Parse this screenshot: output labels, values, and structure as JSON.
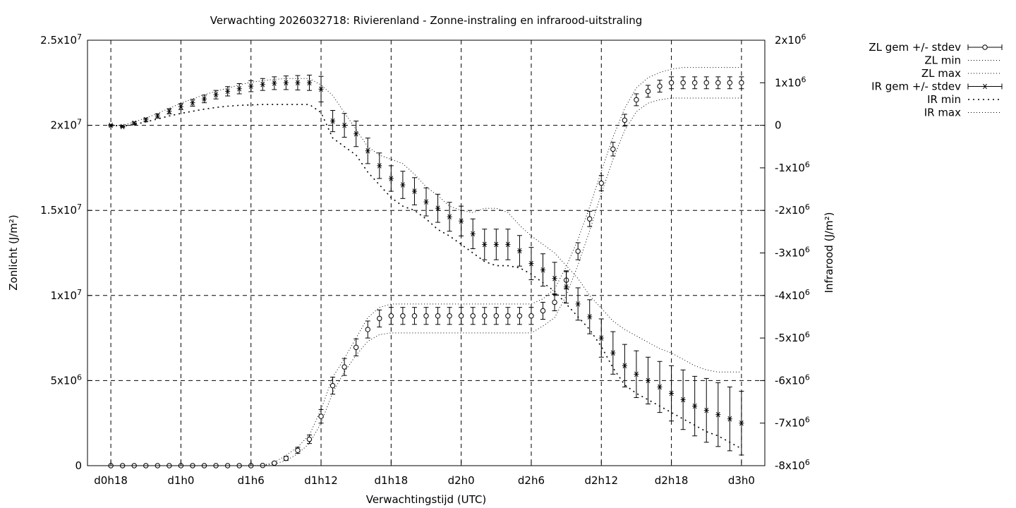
{
  "chart_data": {
    "type": "line",
    "title": "Verwachting 2026032718: Rivierenland - Zonne-instraling en infrarood-uitstraling",
    "xlabel": "Verwachtingstijd (UTC)",
    "ylabel": "Zonlicht (J/m²)",
    "y2label": "Infrarood (J/m²)",
    "x_ticks": [
      {
        "label": "d0h18",
        "hour": 0
      },
      {
        "label": "d1h0",
        "hour": 6
      },
      {
        "label": "d1h6",
        "hour": 12
      },
      {
        "label": "d1h12",
        "hour": 18
      },
      {
        "label": "d1h18",
        "hour": 24
      },
      {
        "label": "d2h0",
        "hour": 30
      },
      {
        "label": "d2h6",
        "hour": 36
      },
      {
        "label": "d2h12",
        "hour": 42
      },
      {
        "label": "d2h18",
        "hour": 48
      },
      {
        "label": "d3h0",
        "hour": 54
      }
    ],
    "xlim": [
      -2,
      56
    ],
    "ylim": [
      0,
      25000000
    ],
    "y2lim": [
      -8000000,
      2000000
    ],
    "y_ticks": [
      {
        "value": 0,
        "mant": "0",
        "exp": ""
      },
      {
        "value": 5000000,
        "mant": "5x10",
        "exp": "6"
      },
      {
        "value": 10000000,
        "mant": "1x10",
        "exp": "7"
      },
      {
        "value": 15000000,
        "mant": "1.5x10",
        "exp": "7"
      },
      {
        "value": 20000000,
        "mant": "2x10",
        "exp": "7"
      },
      {
        "value": 25000000,
        "mant": "2.5x10",
        "exp": "7"
      }
    ],
    "y2_ticks": [
      {
        "value": 2000000,
        "mant": "2x10",
        "exp": "6"
      },
      {
        "value": 1000000,
        "mant": "1x10",
        "exp": "6"
      },
      {
        "value": 0,
        "mant": "0",
        "exp": ""
      },
      {
        "value": -1000000,
        "mant": "-1x10",
        "exp": "6"
      },
      {
        "value": -2000000,
        "mant": "-2x10",
        "exp": "6"
      },
      {
        "value": -3000000,
        "mant": "-3x10",
        "exp": "6"
      },
      {
        "value": -4000000,
        "mant": "-4x10",
        "exp": "6"
      },
      {
        "value": -5000000,
        "mant": "-5x10",
        "exp": "6"
      },
      {
        "value": -6000000,
        "mant": "-6x10",
        "exp": "6"
      },
      {
        "value": -7000000,
        "mant": "-7x10",
        "exp": "6"
      },
      {
        "value": -8000000,
        "mant": "-8x10",
        "exp": "6"
      }
    ],
    "grid": true,
    "legend_position": "outside-right",
    "x_hours": [
      0,
      1,
      2,
      3,
      4,
      5,
      6,
      7,
      8,
      9,
      10,
      11,
      12,
      13,
      14,
      15,
      16,
      17,
      18,
      19,
      20,
      21,
      22,
      23,
      24,
      25,
      26,
      27,
      28,
      29,
      30,
      31,
      32,
      33,
      34,
      35,
      36,
      37,
      38,
      39,
      40,
      41,
      42,
      43,
      44,
      45,
      46,
      47,
      48,
      49,
      50,
      51,
      52,
      53,
      54
    ],
    "series": [
      {
        "name": "ZL gem +/- stdev",
        "axis": "y1",
        "style": "errorbar",
        "marker": "circle",
        "values": [
          0,
          0,
          0,
          0,
          0,
          0,
          0,
          0,
          0,
          0,
          0,
          0,
          0,
          10000,
          150000,
          430000,
          900000,
          1550000,
          2900000,
          4700000,
          5800000,
          6950000,
          8000000,
          8650000,
          8800000,
          8800000,
          8800000,
          8800000,
          8800000,
          8800000,
          8800000,
          8800000,
          8800000,
          8800000,
          8800000,
          8800000,
          8800000,
          9100000,
          9600000,
          10900000,
          12600000,
          14500000,
          16600000,
          18600000,
          20300000,
          21500000,
          22000000,
          22300000,
          22500000,
          22500000,
          22500000,
          22500000,
          22500000,
          22500000,
          22500000
        ],
        "stdev": [
          0,
          0,
          0,
          0,
          0,
          0,
          0,
          0,
          0,
          0,
          0,
          0,
          0,
          15000,
          60000,
          120000,
          180000,
          250000,
          400000,
          500000,
          500000,
          500000,
          500000,
          500000,
          500000,
          500000,
          500000,
          500000,
          500000,
          500000,
          500000,
          500000,
          500000,
          500000,
          500000,
          500000,
          500000,
          500000,
          500000,
          500000,
          500000,
          450000,
          450000,
          400000,
          350000,
          350000,
          350000,
          350000,
          350000,
          350000,
          350000,
          350000,
          350000,
          350000,
          350000
        ]
      },
      {
        "name": "ZL min",
        "axis": "y1",
        "style": "dotted",
        "values": [
          0,
          0,
          0,
          0,
          0,
          0,
          0,
          0,
          0,
          0,
          0,
          0,
          0,
          5000,
          100000,
          300000,
          700000,
          1300000,
          2500000,
          4300000,
          5500000,
          6500000,
          7300000,
          7700000,
          7800000,
          7800000,
          7800000,
          7800000,
          7800000,
          7800000,
          7800000,
          7800000,
          7800000,
          7800000,
          7800000,
          7800000,
          7800000,
          8200000,
          8700000,
          10000000,
          11800000,
          13800000,
          16000000,
          18000000,
          19700000,
          20800000,
          21300000,
          21500000,
          21600000,
          21600000,
          21600000,
          21600000,
          21600000,
          21600000,
          21600000
        ]
      },
      {
        "name": "ZL max",
        "axis": "y1",
        "style": "dotted",
        "values": [
          0,
          0,
          0,
          0,
          0,
          0,
          0,
          0,
          0,
          0,
          0,
          0,
          0,
          20000,
          200000,
          600000,
          1100000,
          1800000,
          3300000,
          5200000,
          6300000,
          7500000,
          8700000,
          9300000,
          9500000,
          9500000,
          9500000,
          9500000,
          9500000,
          9500000,
          9500000,
          9500000,
          9500000,
          9500000,
          9500000,
          9500000,
          9500000,
          9800000,
          10400000,
          11700000,
          13300000,
          15200000,
          17300000,
          19300000,
          21000000,
          22200000,
          22800000,
          23100000,
          23300000,
          23400000,
          23400000,
          23400000,
          23400000,
          23400000,
          23400000
        ]
      },
      {
        "name": "IR gem +/- stdev",
        "axis": "y2",
        "style": "errorbar",
        "marker": "asterisk",
        "values": [
          0,
          -30000,
          50000,
          130000,
          220000,
          330000,
          440000,
          530000,
          620000,
          720000,
          800000,
          860000,
          920000,
          960000,
          990000,
          1000000,
          1000000,
          1000000,
          850000,
          100000,
          0,
          -200000,
          -600000,
          -950000,
          -1250000,
          -1400000,
          -1550000,
          -1800000,
          -1950000,
          -2150000,
          -2250000,
          -2550000,
          -2800000,
          -2800000,
          -2800000,
          -2950000,
          -3250000,
          -3400000,
          -3600000,
          -3800000,
          -4200000,
          -4500000,
          -5000000,
          -5350000,
          -5650000,
          -5850000,
          -6000000,
          -6150000,
          -6300000,
          -6450000,
          -6600000,
          -6700000,
          -6800000,
          -6900000,
          -7000000
        ],
        "stdev": [
          20000,
          20000,
          30000,
          40000,
          50000,
          60000,
          70000,
          80000,
          90000,
          100000,
          110000,
          120000,
          130000,
          140000,
          150000,
          160000,
          170000,
          180000,
          300000,
          250000,
          280000,
          300000,
          300000,
          300000,
          300000,
          320000,
          320000,
          330000,
          330000,
          340000,
          350000,
          350000,
          360000,
          360000,
          360000,
          360000,
          380000,
          380000,
          380000,
          380000,
          380000,
          400000,
          450000,
          500000,
          500000,
          550000,
          550000,
          600000,
          650000,
          700000,
          700000,
          750000,
          750000,
          750000,
          750000
        ]
      },
      {
        "name": "IR min",
        "axis": "y2",
        "style": "dotted",
        "values": [
          0,
          -20000,
          20000,
          80000,
          150000,
          220000,
          280000,
          330000,
          380000,
          420000,
          450000,
          470000,
          480000,
          490000,
          490000,
          490000,
          490000,
          490000,
          300000,
          -300000,
          -500000,
          -700000,
          -1100000,
          -1400000,
          -1700000,
          -1900000,
          -2000000,
          -2200000,
          -2450000,
          -2600000,
          -2800000,
          -3000000,
          -3200000,
          -3300000,
          -3300000,
          -3350000,
          -3500000,
          -3700000,
          -3900000,
          -4200000,
          -4500000,
          -4800000,
          -5200000,
          -5700000,
          -6100000,
          -6300000,
          -6450000,
          -6600000,
          -6750000,
          -6900000,
          -7050000,
          -7200000,
          -7300000,
          -7450000,
          -7600000
        ]
      },
      {
        "name": "IR max",
        "axis": "y2",
        "style": "dotted",
        "values": [
          0,
          0,
          80000,
          170000,
          280000,
          400000,
          520000,
          620000,
          720000,
          800000,
          870000,
          950000,
          1010000,
          1050000,
          1080000,
          1100000,
          1100000,
          1100000,
          950000,
          700000,
          300000,
          -100000,
          -500000,
          -700000,
          -800000,
          -900000,
          -1150000,
          -1450000,
          -1650000,
          -1900000,
          -2000000,
          -2050000,
          -1950000,
          -1950000,
          -2050000,
          -2350000,
          -2600000,
          -2800000,
          -3000000,
          -3300000,
          -3600000,
          -4000000,
          -4300000,
          -4600000,
          -4800000,
          -4950000,
          -5100000,
          -5250000,
          -5350000,
          -5500000,
          -5650000,
          -5750000,
          -5800000,
          -5800000,
          -5800000
        ]
      }
    ]
  }
}
